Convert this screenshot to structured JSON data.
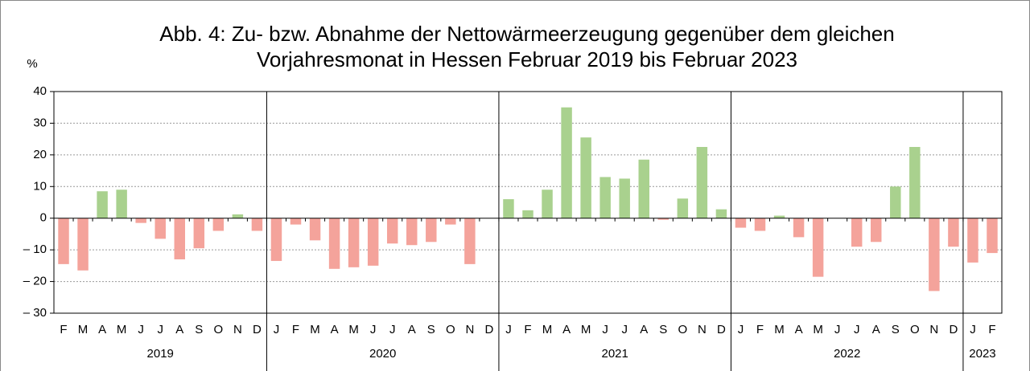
{
  "chart_data": {
    "type": "bar",
    "title_lines": [
      "Abb. 4: Zu- bzw. Abnahme der Nettowärmeerzeugung gegenüber dem gleichen",
      "Vorjahresmonat in Hessen Februar 2019 bis Februar 2023"
    ],
    "y_unit": "%",
    "positive_color": "#a9d18e",
    "negative_color": "#f4a39b",
    "ylim": [
      -30,
      40
    ],
    "yticks": [
      {
        "value": -30,
        "label": "– 30"
      },
      {
        "value": -20,
        "label": "– 20"
      },
      {
        "value": -10,
        "label": "– 10"
      },
      0,
      10,
      20,
      30,
      40
    ],
    "grid": true,
    "groups": [
      {
        "label": "2019",
        "categories": [
          "F",
          "M",
          "A",
          "M",
          "J",
          "J",
          "A",
          "S",
          "O",
          "N",
          "D"
        ],
        "values": [
          -14.5,
          -16.5,
          8.5,
          9,
          -1.5,
          -6.5,
          -13,
          -9.5,
          -4,
          1.2,
          -4
        ]
      },
      {
        "label": "2020",
        "categories": [
          "J",
          "F",
          "M",
          "A",
          "M",
          "J",
          "J",
          "A",
          "S",
          "O",
          "N",
          "D"
        ],
        "values": [
          -13.5,
          -2,
          -7,
          -16,
          -15.5,
          -15,
          -8,
          -8.5,
          -7.5,
          -2,
          -14.5,
          0
        ]
      },
      {
        "label": "2021",
        "categories": [
          "J",
          "F",
          "M",
          "A",
          "M",
          "J",
          "J",
          "A",
          "S",
          "O",
          "N",
          "D"
        ],
        "values": [
          6,
          2.5,
          9,
          35,
          25.5,
          13,
          12.5,
          18.5,
          -0.5,
          6.2,
          22.5,
          2.8
        ]
      },
      {
        "label": "2022",
        "categories": [
          "J",
          "F",
          "M",
          "A",
          "M",
          "J",
          "J",
          "A",
          "S",
          "O",
          "N",
          "D"
        ],
        "values": [
          -3,
          -4,
          0.8,
          -6,
          -18.5,
          0,
          -9,
          -7.5,
          10,
          22.5,
          -23,
          -9
        ]
      },
      {
        "label": "2023",
        "categories": [
          "J",
          "F"
        ],
        "values": [
          -14,
          -11
        ]
      }
    ]
  }
}
